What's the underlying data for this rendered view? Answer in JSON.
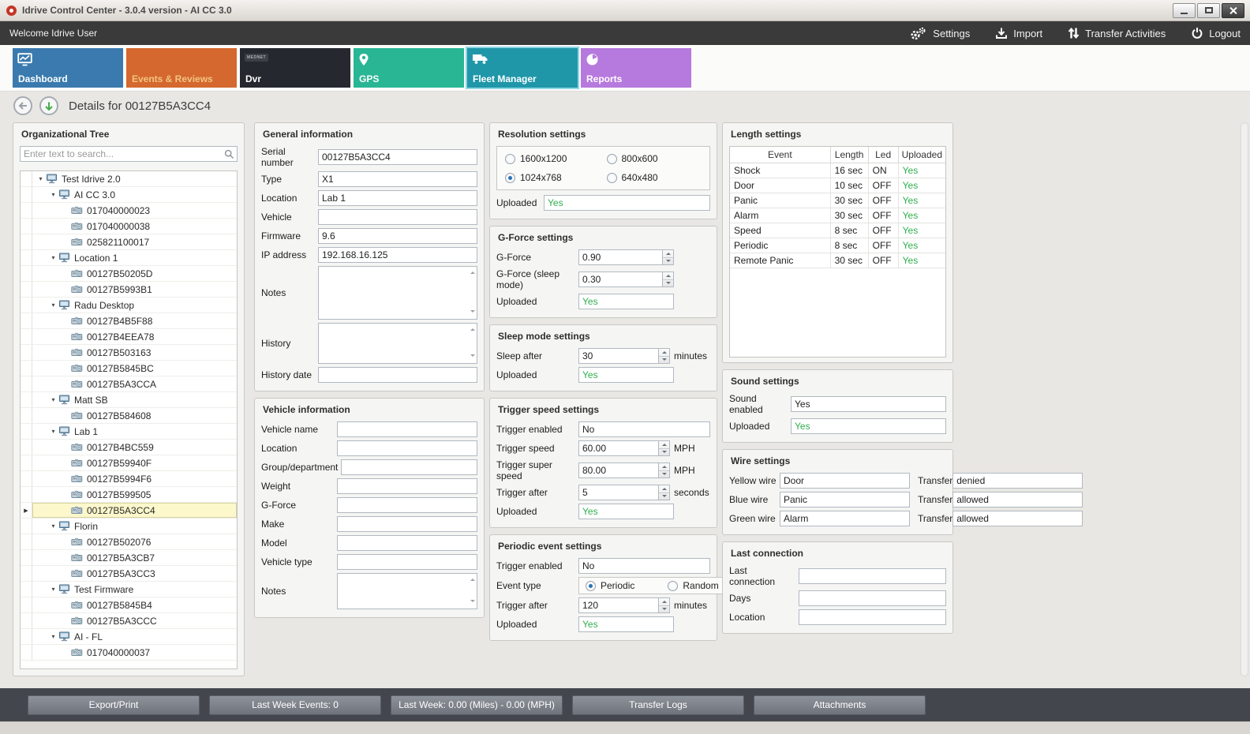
{
  "window": {
    "title": "Idrive Control Center - 3.0.4 version - AI CC 3.0"
  },
  "toolbar": {
    "welcome": "Welcome Idrive User",
    "settings": "Settings",
    "import": "Import",
    "transfer_activities": "Transfer Activities",
    "logout": "Logout"
  },
  "tabs": [
    {
      "id": "dashboard",
      "label": "Dashboard",
      "color": "#3a7aae",
      "icon": "chart-monitor-icon",
      "active": false
    },
    {
      "id": "events",
      "label": "Events & Reviews",
      "color": "#d4682e",
      "label_color": "#f2c383",
      "active": false
    },
    {
      "id": "dvr",
      "label": "Dvr",
      "color": "#25282e",
      "badge": "MEDNET",
      "active": false
    },
    {
      "id": "gps",
      "label": "GPS",
      "color": "#29b694",
      "icon": "map-pin-icon",
      "active": false
    },
    {
      "id": "fleet",
      "label": "Fleet Manager",
      "color": "#1f97a9",
      "icon": "truck-icon",
      "active": true
    },
    {
      "id": "reports",
      "label": "Reports",
      "color": "#b679dd",
      "icon": "pie-chart-icon",
      "active": false
    }
  ],
  "details": {
    "title": "Details for 00127B5A3CC4"
  },
  "colors": {
    "value_green": "#2fae4e",
    "active_tab_border": "#8fd6e4"
  },
  "org_tree": {
    "title": "Organizational Tree",
    "search_placeholder": "Enter text to search...",
    "nodes": [
      {
        "label": "Test Idrive 2.0",
        "level": 0,
        "kind": "org"
      },
      {
        "label": "AI CC 3.0",
        "level": 1,
        "kind": "org"
      },
      {
        "label": "017040000023",
        "level": 2,
        "kind": "device"
      },
      {
        "label": "017040000038",
        "level": 2,
        "kind": "device"
      },
      {
        "label": "025821100017",
        "level": 2,
        "kind": "device"
      },
      {
        "label": "Location 1",
        "level": 1,
        "kind": "org"
      },
      {
        "label": "00127B50205D",
        "level": 2,
        "kind": "device"
      },
      {
        "label": "00127B5993B1",
        "level": 2,
        "kind": "device"
      },
      {
        "label": "Radu Desktop",
        "level": 1,
        "kind": "org"
      },
      {
        "label": "00127B4B5F88",
        "level": 2,
        "kind": "device"
      },
      {
        "label": "00127B4EEA78",
        "level": 2,
        "kind": "device"
      },
      {
        "label": "00127B503163",
        "level": 2,
        "kind": "device"
      },
      {
        "label": "00127B5845BC",
        "level": 2,
        "kind": "device"
      },
      {
        "label": "00127B5A3CCA",
        "level": 2,
        "kind": "device"
      },
      {
        "label": "Matt SB",
        "level": 1,
        "kind": "org"
      },
      {
        "label": "00127B584608",
        "level": 2,
        "kind": "device"
      },
      {
        "label": "Lab 1",
        "level": 1,
        "kind": "org"
      },
      {
        "label": "00127B4BC559",
        "level": 2,
        "kind": "device"
      },
      {
        "label": "00127B59940F",
        "level": 2,
        "kind": "device"
      },
      {
        "label": "00127B5994F6",
        "level": 2,
        "kind": "device"
      },
      {
        "label": "00127B599505",
        "level": 2,
        "kind": "device"
      },
      {
        "label": "00127B5A3CC4",
        "level": 2,
        "kind": "device",
        "selected": true
      },
      {
        "label": "Florin",
        "level": 1,
        "kind": "org"
      },
      {
        "label": "00127B502076",
        "level": 2,
        "kind": "device"
      },
      {
        "label": "00127B5A3CB7",
        "level": 2,
        "kind": "device"
      },
      {
        "label": "00127B5A3CC3",
        "level": 2,
        "kind": "device"
      },
      {
        "label": "Test Firmware",
        "level": 1,
        "kind": "org"
      },
      {
        "label": "00127B5845B4",
        "level": 2,
        "kind": "device"
      },
      {
        "label": "00127B5A3CCC",
        "level": 2,
        "kind": "device"
      },
      {
        "label": "AI - FL",
        "level": 1,
        "kind": "org"
      },
      {
        "label": "017040000037",
        "level": 2,
        "kind": "device"
      }
    ]
  },
  "general_information": {
    "title": "General information",
    "fields": [
      {
        "label": "Serial number",
        "value": "00127B5A3CC4",
        "kind": "text"
      },
      {
        "label": "Type",
        "value": "X1",
        "kind": "text"
      },
      {
        "label": "Location",
        "value": "Lab 1",
        "kind": "text"
      },
      {
        "label": "Vehicle",
        "value": "",
        "kind": "text"
      },
      {
        "label": "Firmware",
        "value": "9.6",
        "kind": "text"
      },
      {
        "label": "IP address",
        "value": "192.168.16.125",
        "kind": "text"
      },
      {
        "label": "Notes",
        "value": "",
        "kind": "textarea"
      },
      {
        "label": "History",
        "value": "",
        "kind": "textarea"
      },
      {
        "label": "History date",
        "value": "",
        "kind": "text"
      }
    ]
  },
  "vehicle_information": {
    "title": "Vehicle information",
    "fields": [
      {
        "label": "Vehicle name",
        "value": "",
        "kind": "text"
      },
      {
        "label": "Location",
        "value": "",
        "kind": "text"
      },
      {
        "label": "Group/department",
        "value": "",
        "kind": "text"
      },
      {
        "label": "Weight",
        "value": "",
        "kind": "text"
      },
      {
        "label": "G-Force",
        "value": "",
        "kind": "text"
      },
      {
        "label": "Make",
        "value": "",
        "kind": "text"
      },
      {
        "label": "Model",
        "value": "",
        "kind": "text"
      },
      {
        "label": "Vehicle type",
        "value": "",
        "kind": "text"
      },
      {
        "label": "Notes",
        "value": "",
        "kind": "textarea"
      }
    ]
  },
  "resolution_settings": {
    "title": "Resolution settings",
    "options": [
      {
        "label": "1600x1200",
        "checked": false
      },
      {
        "label": "800x600",
        "checked": false
      },
      {
        "label": "1024x768",
        "checked": true
      },
      {
        "label": "640x480",
        "checked": false
      }
    ],
    "fields": [
      {
        "label": "Uploaded",
        "value": "Yes",
        "kind": "green"
      }
    ]
  },
  "gforce_settings": {
    "title": "G-Force settings",
    "fields": [
      {
        "label": "G-Force",
        "value": "0.90",
        "kind": "spin"
      },
      {
        "label": "G-Force (sleep mode)",
        "value": "0.30",
        "kind": "spin"
      },
      {
        "label": "Uploaded",
        "value": "Yes",
        "kind": "green"
      }
    ]
  },
  "sleep_mode_settings": {
    "title": "Sleep mode settings",
    "fields": [
      {
        "label": "Sleep after",
        "value": "30",
        "kind": "spin",
        "unit": "minutes"
      },
      {
        "label": "Uploaded",
        "value": "Yes",
        "kind": "green"
      }
    ]
  },
  "trigger_speed_settings": {
    "title": "Trigger speed settings",
    "fields": [
      {
        "label": "Trigger enabled",
        "value": "No",
        "kind": "text"
      },
      {
        "label": "Trigger speed",
        "value": "60.00",
        "kind": "spin",
        "unit": "MPH"
      },
      {
        "label": "Trigger super speed",
        "value": "80.00",
        "kind": "spin",
        "unit": "MPH"
      },
      {
        "label": "Trigger after",
        "value": "5",
        "kind": "spin",
        "unit": "seconds"
      },
      {
        "label": "Uploaded",
        "value": "Yes",
        "kind": "green"
      }
    ]
  },
  "periodic_event_settings": {
    "title": "Periodic event settings",
    "fields_top": [
      {
        "label": "Trigger enabled",
        "value": "No",
        "kind": "text"
      }
    ],
    "event_type_label": "Event type",
    "event_type_options": [
      {
        "label": "Periodic",
        "checked": true
      },
      {
        "label": "Random",
        "checked": false
      }
    ],
    "fields_bottom": [
      {
        "label": "Trigger after",
        "value": "120",
        "kind": "spin",
        "unit": "minutes"
      },
      {
        "label": "Uploaded",
        "value": "Yes",
        "kind": "green"
      }
    ]
  },
  "length_settings": {
    "title": "Length settings",
    "columns": [
      "Event",
      "Length",
      "Led",
      "Uploaded"
    ],
    "rows": [
      [
        "Shock",
        "16 sec",
        "ON",
        "Yes"
      ],
      [
        "Door",
        "10 sec",
        "OFF",
        "Yes"
      ],
      [
        "Panic",
        "30 sec",
        "OFF",
        "Yes"
      ],
      [
        "Alarm",
        "30 sec",
        "OFF",
        "Yes"
      ],
      [
        "Speed",
        "8 sec",
        "OFF",
        "Yes"
      ],
      [
        "Periodic",
        "8 sec",
        "OFF",
        "Yes"
      ],
      [
        "Remote Panic",
        "30 sec",
        "OFF",
        "Yes"
      ]
    ]
  },
  "sound_settings": {
    "title": "Sound settings",
    "fields": [
      {
        "label": "Sound enabled",
        "value": "Yes",
        "kind": "text"
      },
      {
        "label": "Uploaded",
        "value": "Yes",
        "kind": "green"
      }
    ]
  },
  "wire_settings": {
    "title": "Wire settings",
    "rows": [
      {
        "label": "Yellow wire",
        "value": "Door",
        "transfer_label": "Transfer",
        "transfer_value": "denied"
      },
      {
        "label": "Blue wire",
        "value": "Panic",
        "transfer_label": "Transfer",
        "transfer_value": "allowed"
      },
      {
        "label": "Green wire",
        "value": "Alarm",
        "transfer_label": "Transfer",
        "transfer_value": "allowed"
      }
    ]
  },
  "last_connection": {
    "title": "Last connection",
    "fields": [
      {
        "label": "Last connection",
        "value": "",
        "kind": "text"
      },
      {
        "label": "Days",
        "value": "",
        "kind": "text"
      },
      {
        "label": "Location",
        "value": "",
        "kind": "text"
      }
    ]
  },
  "bottom_bar": {
    "buttons": [
      "Export/Print",
      "Last Week Events: 0",
      "Last Week: 0.00 (Miles) - 0.00 (MPH)",
      "Transfer Logs",
      "Attachments"
    ]
  }
}
